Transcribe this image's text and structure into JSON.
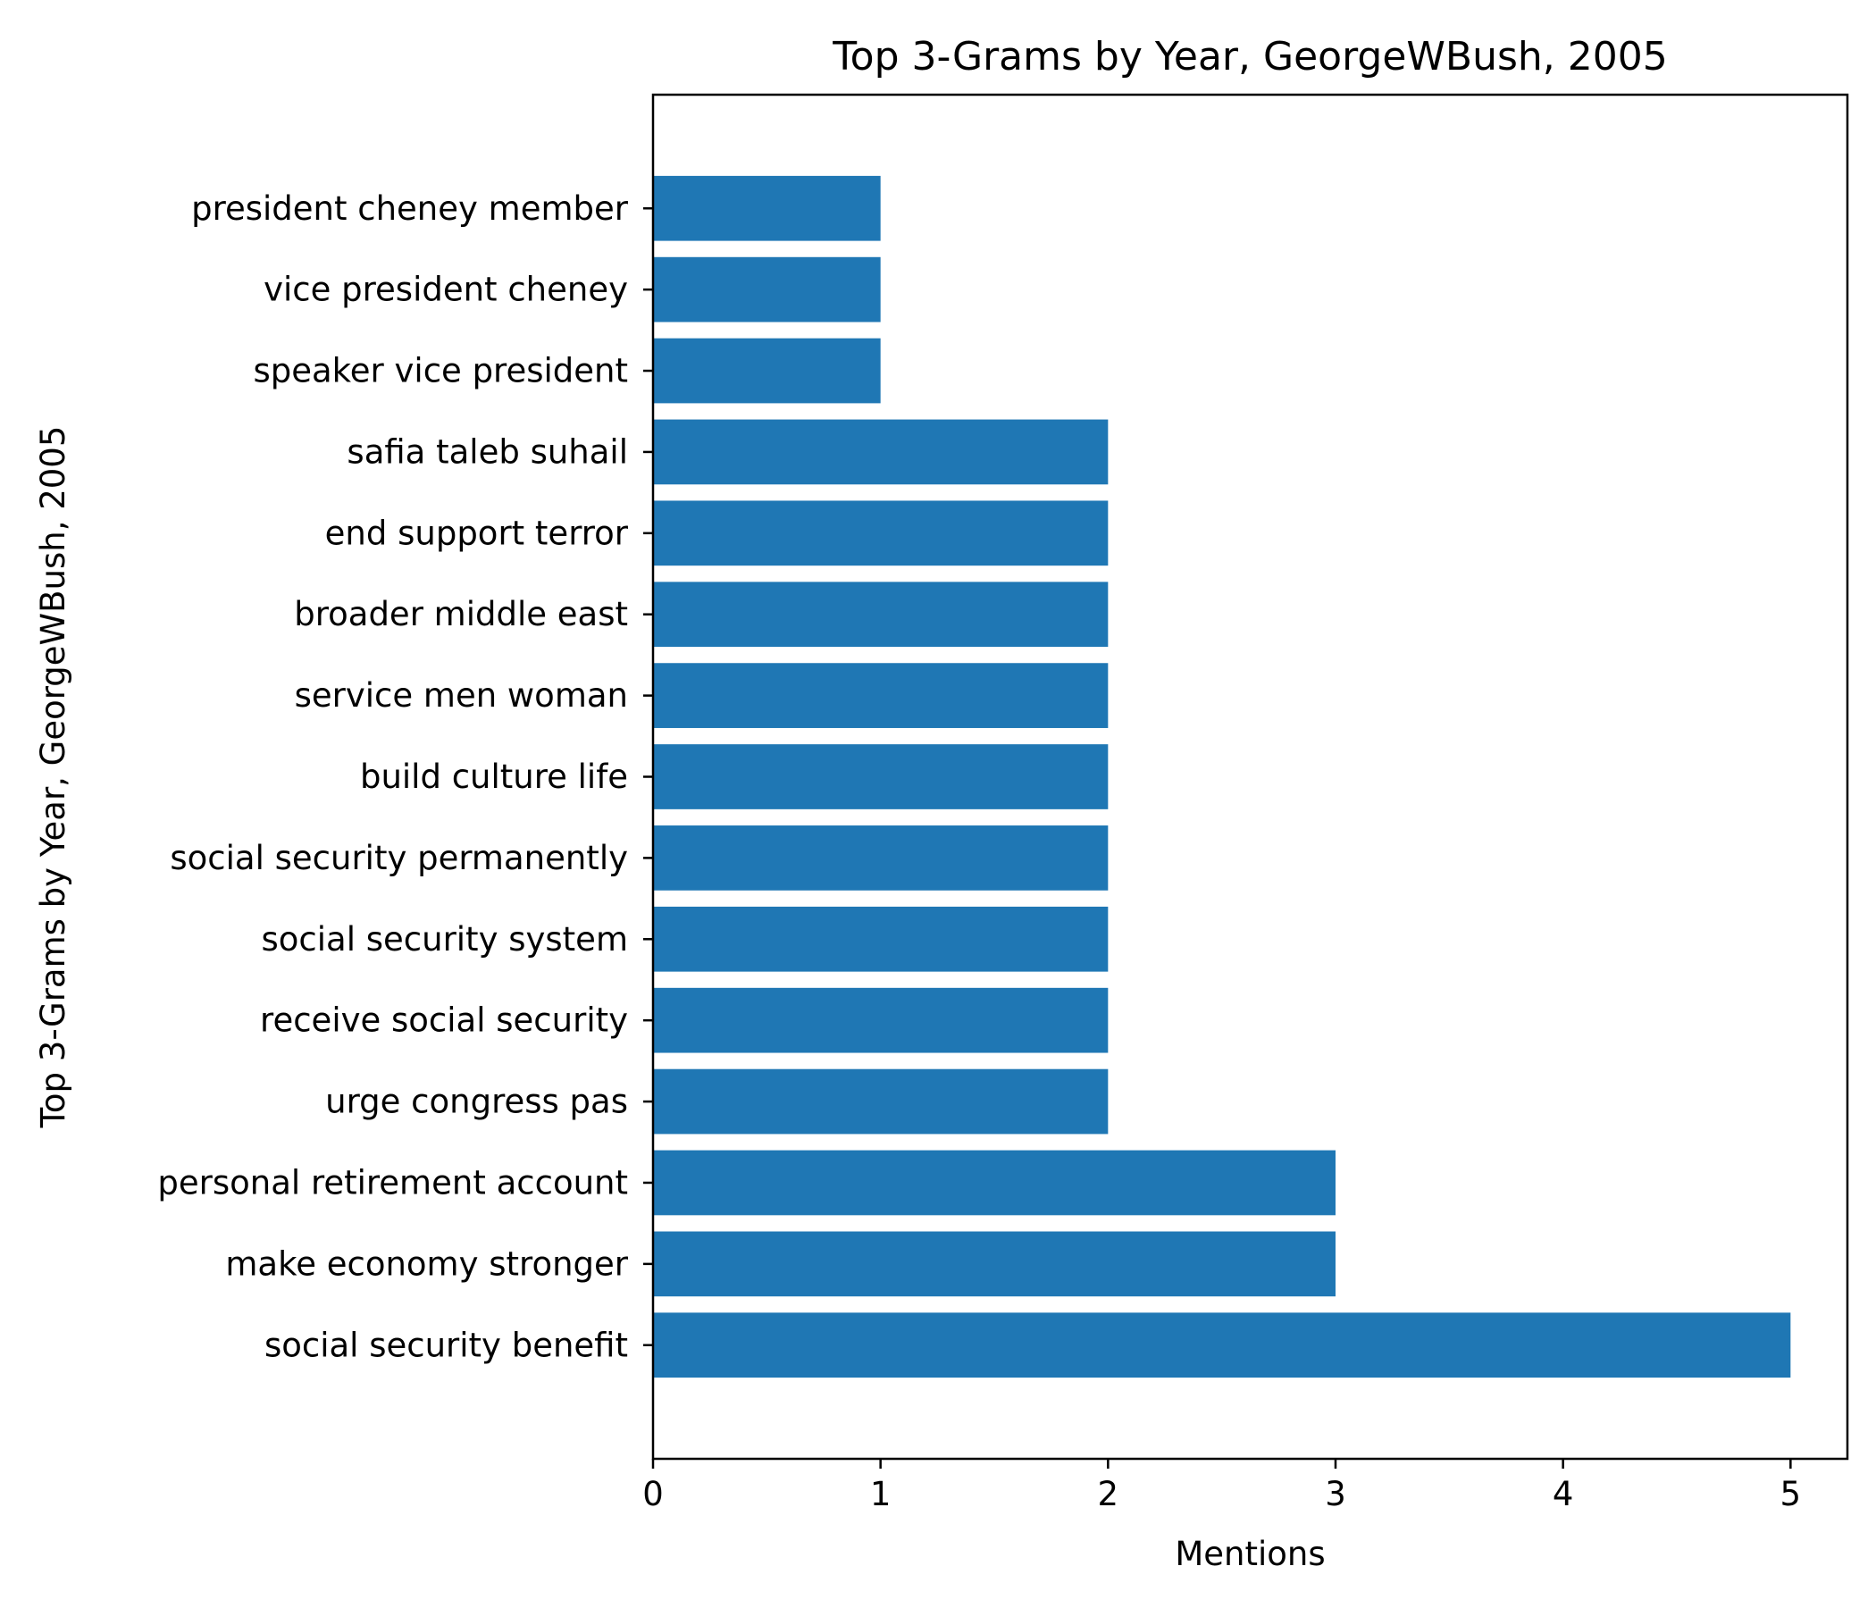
{
  "chart_data": {
    "type": "bar",
    "orientation": "horizontal",
    "title": "Top 3-Grams by Year, GeorgeWBush, 2005",
    "xlabel": "Mentions",
    "ylabel": "Top 3-Grams by Year, GeorgeWBush, 2005",
    "categories": [
      "social security benefit",
      "make economy stronger",
      "personal retirement account",
      "urge congress pas",
      "receive social security",
      "social security system",
      "social security permanently",
      "build culture life",
      "service men woman",
      "broader middle east",
      "end support terror",
      "safia taleb suhail",
      "speaker vice president",
      "vice president cheney",
      "president cheney member"
    ],
    "values": [
      5,
      3,
      3,
      2,
      2,
      2,
      2,
      2,
      2,
      2,
      2,
      2,
      1,
      1,
      1
    ],
    "xlim": [
      0,
      5.25
    ],
    "xticks": [
      0,
      1,
      2,
      3,
      4,
      5
    ],
    "bar_color": "#1f77b4",
    "grid": false,
    "legend": "none"
  }
}
